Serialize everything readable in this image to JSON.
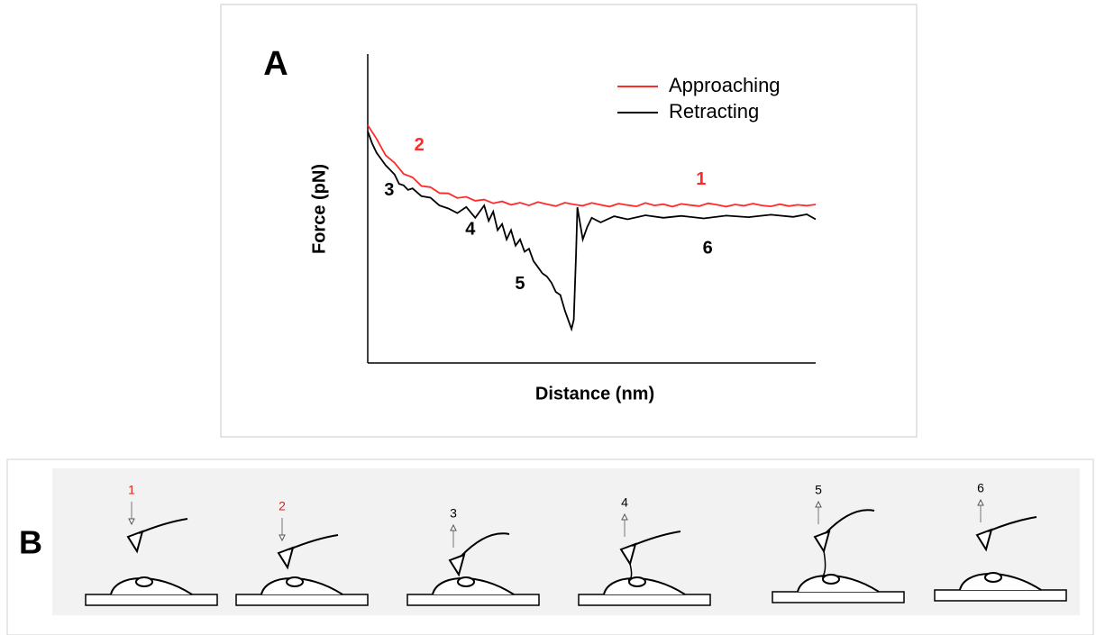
{
  "chart_data": {
    "type": "line",
    "label": "A",
    "xlabel": "Distance (nm)",
    "ylabel": "Force (pN)",
    "xlim": [
      0,
      100
    ],
    "ylim": [
      0,
      100
    ],
    "legend": "upper right",
    "series": [
      {
        "name": "Approaching",
        "color": "#ff2a2a",
        "x": [
          0,
          2,
          4,
          6,
          8,
          10,
          12,
          14,
          16,
          18,
          20,
          22,
          24,
          26,
          28,
          30,
          32,
          34,
          36,
          38,
          40,
          42,
          44,
          46,
          48,
          50,
          52,
          54,
          56,
          58,
          60,
          62,
          64,
          66,
          68,
          70,
          72,
          74,
          76,
          78,
          80,
          82,
          84,
          86,
          88,
          90,
          92,
          94,
          96,
          98,
          100
        ],
        "values": [
          77,
          72.5,
          67.2,
          64.8,
          61.2,
          60.1,
          57.3,
          56.9,
          55.0,
          54.9,
          53.4,
          53.8,
          52.5,
          52.9,
          51.7,
          52.3,
          51.2,
          51.9,
          51.0,
          52.1,
          51.4,
          50.8,
          51.9,
          51.3,
          50.9,
          51.8,
          51.2,
          50.6,
          51.6,
          51.1,
          50.7,
          51.8,
          51.0,
          51.4,
          50.6,
          51.5,
          51.1,
          50.8,
          51.7,
          51.2,
          50.6,
          51.3,
          50.9,
          51.6,
          51.0,
          50.7,
          51.4,
          50.8,
          51.2,
          50.9,
          51.3
        ]
      },
      {
        "name": "Retracting",
        "color": "#000000",
        "x": [
          0,
          1,
          2,
          3,
          4,
          5,
          6,
          7,
          8,
          9,
          10,
          12,
          14,
          16,
          18,
          20,
          22,
          24,
          26,
          27,
          28,
          29,
          30,
          31,
          32,
          33,
          34,
          35,
          36,
          37,
          38,
          39,
          40,
          41,
          42,
          43,
          44,
          45,
          45.5,
          46,
          46.5,
          46.8,
          47.3,
          48,
          49,
          50,
          52,
          55,
          58,
          62,
          66,
          70,
          75,
          80,
          85,
          90,
          95,
          98,
          100
        ],
        "values": [
          75,
          71,
          68,
          66,
          64,
          62.5,
          61,
          58,
          57.5,
          56,
          56.5,
          54,
          53.5,
          51,
          50,
          48.5,
          50.5,
          47,
          51,
          46,
          49,
          43,
          45,
          40,
          43,
          38,
          40,
          36,
          37,
          33,
          31,
          29,
          28,
          26,
          23,
          22,
          17,
          13,
          11,
          14,
          35,
          50.4,
          46,
          40,
          44,
          47,
          45.5,
          47.5,
          46.5,
          47.8,
          47,
          47.6,
          46.8,
          47.7,
          47.2,
          48,
          47.3,
          48.1,
          46.5
        ]
      }
    ],
    "annotations": [
      {
        "text": "1",
        "x": 74.4,
        "y": 59.2,
        "color": "#ff2a2a"
      },
      {
        "text": "2",
        "x": 11.5,
        "y": 70.3,
        "color": "#ff2a2a"
      },
      {
        "text": "3",
        "x": 4.8,
        "y": 55.7,
        "color": "#000000"
      },
      {
        "text": "4",
        "x": 22.9,
        "y": 43.1,
        "color": "#000000"
      },
      {
        "text": "5",
        "x": 34,
        "y": 25.4,
        "color": "#000000"
      },
      {
        "text": "6",
        "x": 75.9,
        "y": 37,
        "color": "#000000"
      }
    ]
  },
  "panel_b": {
    "label": "B",
    "steps": [
      {
        "label": "1",
        "color": "#e02020"
      },
      {
        "label": "2",
        "color": "#e02020"
      },
      {
        "label": "3",
        "color": "#000000"
      },
      {
        "label": "4",
        "color": "#000000"
      },
      {
        "label": "5",
        "color": "#000000"
      },
      {
        "label": "6",
        "color": "#000000"
      }
    ]
  }
}
